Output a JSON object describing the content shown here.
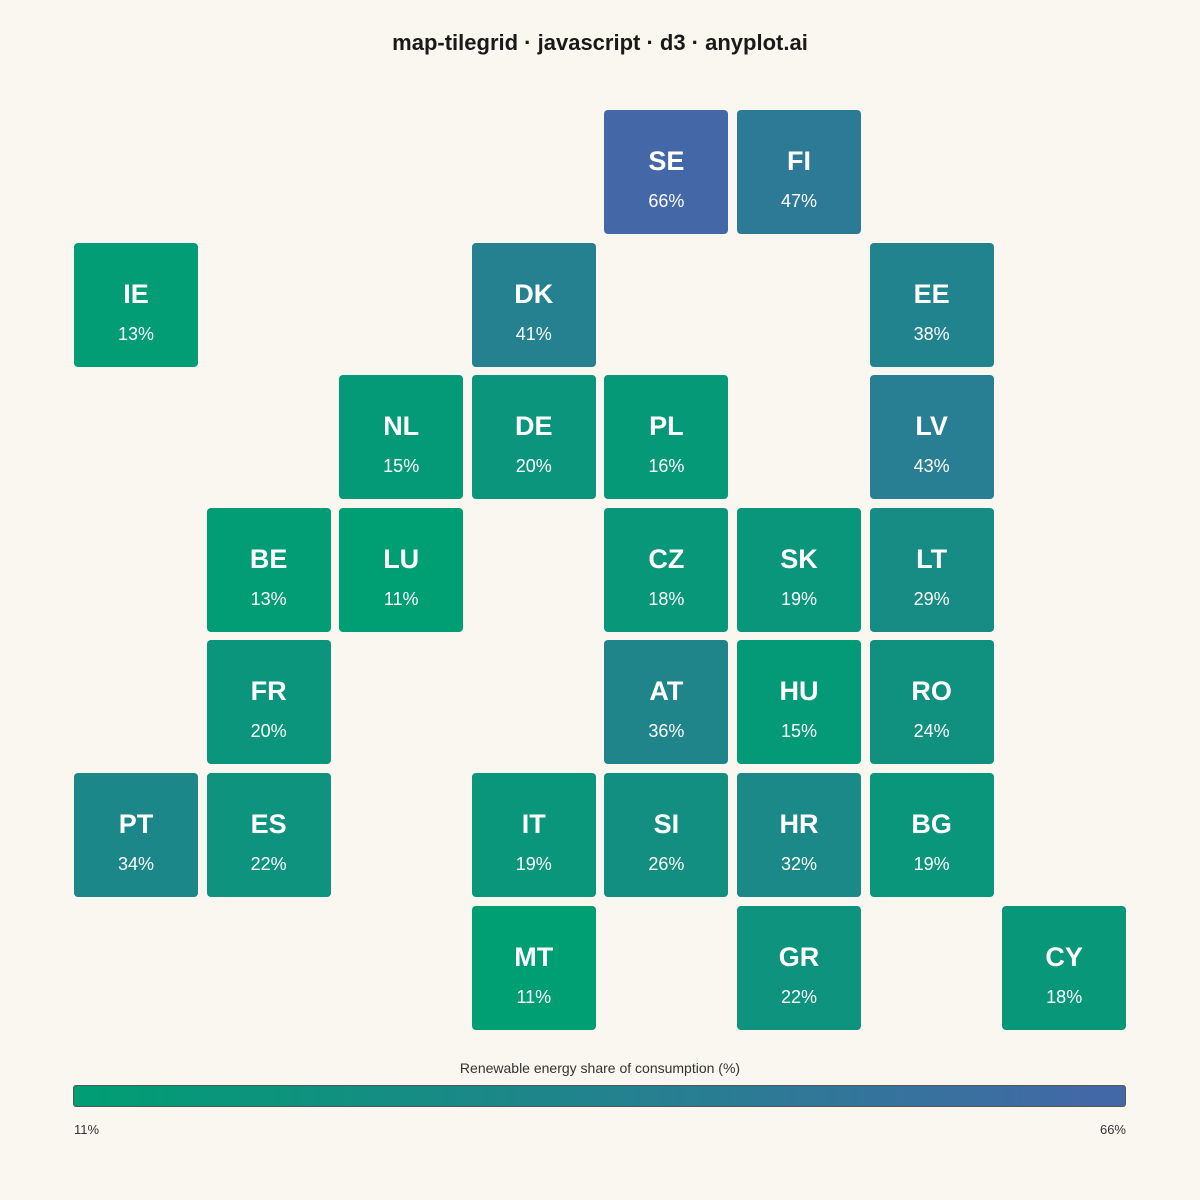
{
  "title": "map-tilegrid · javascript · d3 · anyplot.ai",
  "colors": {
    "low": "#009E73",
    "high": "#4467A8",
    "background": "#FAF7F0"
  },
  "chart_data": {
    "type": "heatmap",
    "unit": "%",
    "value_range": [
      11,
      66
    ],
    "tiles": [
      {
        "code": "SE",
        "value": 66,
        "row": 0,
        "col": 4
      },
      {
        "code": "FI",
        "value": 47,
        "row": 0,
        "col": 5
      },
      {
        "code": "IE",
        "value": 13,
        "row": 1,
        "col": 0
      },
      {
        "code": "DK",
        "value": 41,
        "row": 1,
        "col": 3
      },
      {
        "code": "EE",
        "value": 38,
        "row": 1,
        "col": 6
      },
      {
        "code": "NL",
        "value": 15,
        "row": 2,
        "col": 2
      },
      {
        "code": "DE",
        "value": 20,
        "row": 2,
        "col": 3
      },
      {
        "code": "PL",
        "value": 16,
        "row": 2,
        "col": 4
      },
      {
        "code": "LV",
        "value": 43,
        "row": 2,
        "col": 6
      },
      {
        "code": "BE",
        "value": 13,
        "row": 3,
        "col": 1
      },
      {
        "code": "LU",
        "value": 11,
        "row": 3,
        "col": 2
      },
      {
        "code": "CZ",
        "value": 18,
        "row": 3,
        "col": 4
      },
      {
        "code": "SK",
        "value": 19,
        "row": 3,
        "col": 5
      },
      {
        "code": "LT",
        "value": 29,
        "row": 3,
        "col": 6
      },
      {
        "code": "FR",
        "value": 20,
        "row": 4,
        "col": 1
      },
      {
        "code": "AT",
        "value": 36,
        "row": 4,
        "col": 4
      },
      {
        "code": "HU",
        "value": 15,
        "row": 4,
        "col": 5
      },
      {
        "code": "RO",
        "value": 24,
        "row": 4,
        "col": 6
      },
      {
        "code": "PT",
        "value": 34,
        "row": 5,
        "col": 0
      },
      {
        "code": "ES",
        "value": 22,
        "row": 5,
        "col": 1
      },
      {
        "code": "IT",
        "value": 19,
        "row": 5,
        "col": 3
      },
      {
        "code": "SI",
        "value": 26,
        "row": 5,
        "col": 4
      },
      {
        "code": "HR",
        "value": 32,
        "row": 5,
        "col": 5
      },
      {
        "code": "BG",
        "value": 19,
        "row": 5,
        "col": 6
      },
      {
        "code": "MT",
        "value": 11,
        "row": 6,
        "col": 3
      },
      {
        "code": "GR",
        "value": 22,
        "row": 6,
        "col": 5
      },
      {
        "code": "CY",
        "value": 18,
        "row": 6,
        "col": 7
      }
    ],
    "legend": {
      "title": "Renewable energy share of consumption (%)",
      "min_label": "11%",
      "max_label": "66%"
    }
  }
}
